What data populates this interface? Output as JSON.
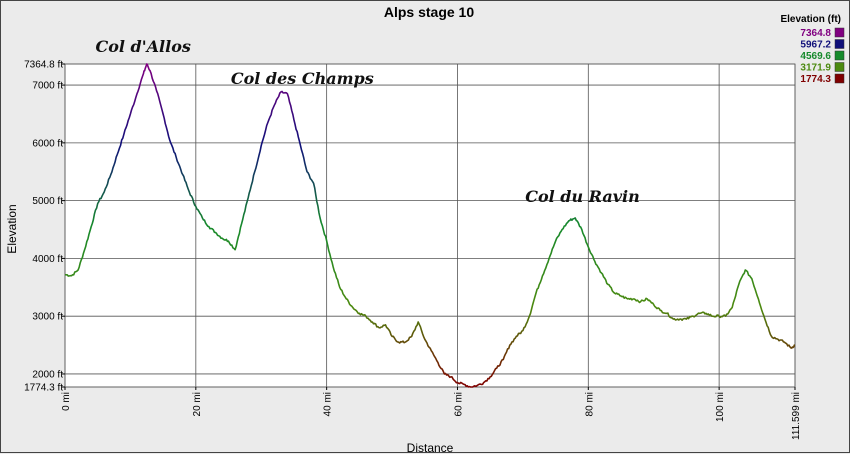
{
  "chart_data": {
    "type": "line",
    "title": "Alps stage 10",
    "xlabel": "Distance",
    "ylabel": "Elevation",
    "xlim": [
      0,
      111.599
    ],
    "ylim": [
      1774.3,
      7364.8
    ],
    "x_ticks": [
      "0 mi",
      "20 mi",
      "40 mi",
      "60 mi",
      "80 mi",
      "100 mi",
      "111.599 mi"
    ],
    "x_tick_values": [
      0,
      20,
      40,
      60,
      80,
      100,
      111.599
    ],
    "y_ticks": [
      "1774.3 ft",
      "2000 ft",
      "3000 ft",
      "4000 ft",
      "5000 ft",
      "6000 ft",
      "7000 ft",
      "7364.8 ft"
    ],
    "y_tick_values": [
      1774.3,
      2000,
      3000,
      4000,
      5000,
      6000,
      7000,
      7364.8
    ],
    "grid": true,
    "legend": {
      "title": "Elevation (ft)",
      "placement": "top-right",
      "entries": [
        {
          "label": "7364.8",
          "color": "#800080"
        },
        {
          "label": "5967.2",
          "color": "#10107a"
        },
        {
          "label": "4569.6",
          "color": "#168a2c"
        },
        {
          "label": "3171.9",
          "color": "#4c8a10"
        },
        {
          "label": "1774.3",
          "color": "#800000"
        }
      ]
    },
    "annotations": [
      {
        "text": "Col d'Allos",
        "x": 12,
        "y": 7364.8
      },
      {
        "text": "Col des Champs",
        "x": 33,
        "y": 6880
      },
      {
        "text": "Col du Ravin",
        "x": 78,
        "y": 4700
      }
    ],
    "series": [
      {
        "x": [
          0,
          1,
          2,
          3,
          4,
          5,
          6,
          7,
          8,
          9,
          10,
          11,
          12,
          12.5,
          13,
          14,
          15,
          16,
          17,
          18,
          19,
          20,
          21,
          22,
          23,
          24,
          25,
          26,
          27,
          28,
          29,
          30,
          31,
          32,
          33,
          34,
          35,
          36,
          37,
          38,
          39,
          40,
          41,
          42,
          43,
          44,
          45,
          46,
          47,
          48,
          49,
          50,
          51,
          52,
          53,
          54,
          55,
          56,
          57,
          58,
          59,
          60,
          61,
          62,
          63,
          64,
          65,
          66,
          67,
          68,
          69,
          70,
          71,
          72,
          73,
          74,
          75,
          76,
          77,
          78,
          79,
          80,
          81,
          82,
          83,
          84,
          85,
          86,
          87,
          88,
          89,
          90,
          91,
          92,
          93,
          94,
          95,
          96,
          97,
          98,
          99,
          100,
          101,
          102,
          103,
          104,
          105,
          106,
          107,
          108,
          109,
          110,
          111,
          111.599
        ],
        "y": [
          3720,
          3700,
          3800,
          4150,
          4550,
          4950,
          5150,
          5450,
          5800,
          6150,
          6500,
          6850,
          7200,
          7364.8,
          7250,
          6900,
          6500,
          6050,
          5750,
          5450,
          5150,
          4900,
          4700,
          4550,
          4450,
          4350,
          4300,
          4150,
          4600,
          5050,
          5500,
          5950,
          6350,
          6650,
          6880,
          6850,
          6400,
          5950,
          5500,
          5300,
          4700,
          4300,
          3850,
          3500,
          3300,
          3150,
          3050,
          3000,
          2900,
          2800,
          2850,
          2650,
          2550,
          2550,
          2650,
          2900,
          2600,
          2400,
          2200,
          2000,
          1950,
          1850,
          1820,
          1774.3,
          1800,
          1850,
          1950,
          2100,
          2250,
          2500,
          2650,
          2750,
          3000,
          3400,
          3700,
          4000,
          4300,
          4500,
          4650,
          4700,
          4500,
          4200,
          3950,
          3750,
          3550,
          3400,
          3350,
          3300,
          3300,
          3250,
          3300,
          3200,
          3100,
          3050,
          2950,
          2950,
          2950,
          3000,
          3050,
          3050,
          3000,
          3000,
          3000,
          3150,
          3550,
          3800,
          3650,
          3300,
          2950,
          2650,
          2600,
          2550,
          2450,
          2500
        ]
      }
    ]
  }
}
